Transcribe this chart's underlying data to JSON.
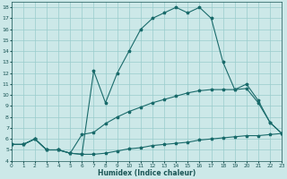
{
  "xlabel": "Humidex (Indice chaleur)",
  "background_color": "#cce8e8",
  "grid_color": "#99cccc",
  "line_color": "#1a6b6b",
  "xlim": [
    0,
    23
  ],
  "ylim": [
    4,
    18.5
  ],
  "xticks": [
    0,
    1,
    2,
    3,
    4,
    5,
    6,
    7,
    8,
    9,
    10,
    11,
    12,
    13,
    14,
    15,
    16,
    17,
    18,
    19,
    20,
    21,
    22,
    23
  ],
  "yticks": [
    4,
    5,
    6,
    7,
    8,
    9,
    10,
    11,
    12,
    13,
    14,
    15,
    16,
    17,
    18
  ],
  "line1_x": [
    0,
    1,
    2,
    3,
    4,
    5,
    6,
    7,
    8,
    9,
    10,
    11,
    12,
    13,
    14,
    15,
    16,
    17,
    18,
    19,
    20,
    21,
    22,
    23
  ],
  "line1_y": [
    5.5,
    5.5,
    6.0,
    5.0,
    5.0,
    4.7,
    4.6,
    4.6,
    4.7,
    4.9,
    5.1,
    5.2,
    5.4,
    5.5,
    5.6,
    5.7,
    5.9,
    6.0,
    6.1,
    6.2,
    6.3,
    6.3,
    6.4,
    6.5
  ],
  "line2_x": [
    0,
    1,
    2,
    3,
    4,
    5,
    6,
    7,
    8,
    9,
    10,
    11,
    12,
    13,
    14,
    15,
    16,
    17,
    18,
    19,
    20,
    21,
    22,
    23
  ],
  "line2_y": [
    5.5,
    5.5,
    6.0,
    5.0,
    5.0,
    4.7,
    4.6,
    12.2,
    9.3,
    12.0,
    14.0,
    16.0,
    17.0,
    17.5,
    18.0,
    17.5,
    18.0,
    17.0,
    13.0,
    10.5,
    11.0,
    9.5,
    7.5,
    6.5
  ],
  "line3_x": [
    0,
    1,
    2,
    3,
    4,
    5,
    6,
    7,
    8,
    9,
    10,
    11,
    12,
    13,
    14,
    15,
    16,
    17,
    18,
    19,
    20,
    21,
    22,
    23
  ],
  "line3_y": [
    5.5,
    5.5,
    6.0,
    5.0,
    5.0,
    4.7,
    6.4,
    6.6,
    7.4,
    8.0,
    8.5,
    8.9,
    9.3,
    9.6,
    9.9,
    10.2,
    10.4,
    10.5,
    10.5,
    10.5,
    10.6,
    9.3,
    7.5,
    6.5
  ],
  "font_color": "#1a5555"
}
